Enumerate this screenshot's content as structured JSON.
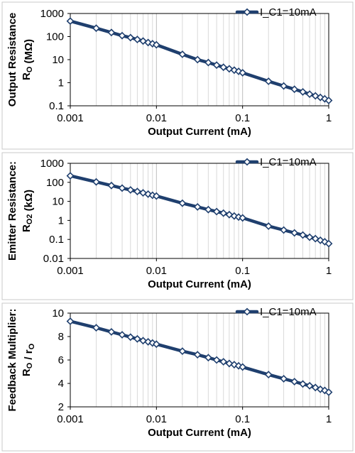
{
  "chart_data": [
    {
      "type": "line",
      "xscale": "log",
      "yscale": "log",
      "xlabel": "Output Current (mA)",
      "ylabel": [
        "Output Resistance",
        "R_O (MΩ)"
      ],
      "xlim": [
        0.001,
        1
      ],
      "ylim": [
        0.1,
        1000
      ],
      "x_ticks": [
        "0.001",
        "0.01",
        "0.1",
        "1"
      ],
      "y_ticks": [
        "0.1",
        "1",
        "10",
        "100",
        "1000"
      ],
      "grid": true,
      "legend_position": "top-right",
      "series": [
        {
          "name": "I_C1=10mA",
          "x": [
            0.001,
            0.002,
            0.003,
            0.004,
            0.005,
            0.006,
            0.007,
            0.008,
            0.009,
            0.01,
            0.02,
            0.03,
            0.04,
            0.05,
            0.06,
            0.07,
            0.08,
            0.09,
            0.1,
            0.2,
            0.3,
            0.4,
            0.5,
            0.6,
            0.7,
            0.8,
            0.9,
            1
          ],
          "y": [
            470,
            230,
            150,
            110,
            90,
            75,
            64,
            55,
            49,
            44,
            17,
            10,
            7.5,
            5.8,
            4.7,
            4.0,
            3.5,
            3.1,
            2.7,
            1.15,
            0.72,
            0.52,
            0.4,
            0.32,
            0.27,
            0.23,
            0.2,
            0.17
          ]
        }
      ]
    },
    {
      "type": "line",
      "xscale": "log",
      "yscale": "log",
      "xlabel": "Output Current (mA)",
      "ylabel": [
        "Emitter Resistance:",
        "R_O2 (kΩ)"
      ],
      "xlim": [
        0.001,
        1
      ],
      "ylim": [
        0.01,
        1000
      ],
      "x_ticks": [
        "0.001",
        "0.01",
        "0.1",
        "1"
      ],
      "y_ticks": [
        "0.01",
        "0.1",
        "1",
        "10",
        "100",
        "1000"
      ],
      "grid": true,
      "legend_position": "top-right",
      "series": [
        {
          "name": "I_C1=10mA",
          "x": [
            0.001,
            0.002,
            0.003,
            0.004,
            0.005,
            0.006,
            0.007,
            0.008,
            0.009,
            0.01,
            0.02,
            0.03,
            0.04,
            0.05,
            0.06,
            0.07,
            0.08,
            0.09,
            0.1,
            0.2,
            0.3,
            0.4,
            0.5,
            0.6,
            0.7,
            0.8,
            0.9,
            1
          ],
          "y": [
            220,
            105,
            68,
            50,
            40,
            33,
            28,
            24,
            21,
            19,
            8.0,
            5.1,
            3.7,
            2.9,
            2.4,
            2.0,
            1.7,
            1.5,
            1.35,
            0.5,
            0.31,
            0.22,
            0.17,
            0.13,
            0.11,
            0.09,
            0.075,
            0.06
          ]
        }
      ]
    },
    {
      "type": "line",
      "xscale": "log",
      "yscale": "linear",
      "xlabel": "Output Current (mA)",
      "ylabel": [
        "Feedback Multiplier:",
        "R_O / r_O"
      ],
      "xlim": [
        0.001,
        1
      ],
      "ylim": [
        2,
        10
      ],
      "x_ticks": [
        "0.001",
        "0.01",
        "0.1",
        "1"
      ],
      "y_ticks": [
        "2",
        "4",
        "6",
        "8",
        "10"
      ],
      "grid": true,
      "legend_position": "top-right",
      "series": [
        {
          "name": "I_C1=10mA",
          "x": [
            0.001,
            0.002,
            0.003,
            0.004,
            0.005,
            0.006,
            0.007,
            0.008,
            0.009,
            0.01,
            0.02,
            0.03,
            0.04,
            0.05,
            0.06,
            0.07,
            0.08,
            0.09,
            0.1,
            0.2,
            0.3,
            0.4,
            0.5,
            0.6,
            0.7,
            0.8,
            0.9,
            1
          ],
          "y": [
            9.3,
            8.75,
            8.4,
            8.15,
            7.95,
            7.8,
            7.65,
            7.55,
            7.45,
            7.35,
            6.75,
            6.45,
            6.2,
            6.0,
            5.85,
            5.7,
            5.6,
            5.5,
            5.4,
            4.75,
            4.4,
            4.15,
            3.95,
            3.8,
            3.65,
            3.5,
            3.4,
            3.25
          ]
        }
      ]
    }
  ]
}
